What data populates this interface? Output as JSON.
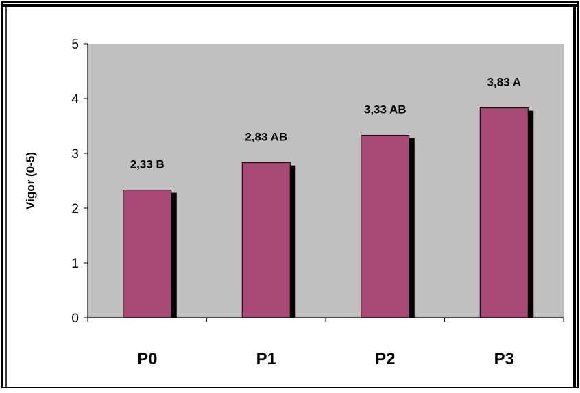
{
  "chart_data": {
    "type": "bar",
    "categories": [
      "P0",
      "P1",
      "P2",
      "P3"
    ],
    "values": [
      2.33,
      2.83,
      3.33,
      3.83
    ],
    "data_labels": [
      "2,33 B",
      "2,83 AB",
      "3,33 AB",
      "3,83 A"
    ],
    "ylabel": "Vigor (0-5)",
    "xlabel": "",
    "ylim": [
      0,
      5
    ],
    "yticks": [
      "0",
      "1",
      "2",
      "3",
      "4",
      "5"
    ],
    "grid": false,
    "legend": "none",
    "colors": {
      "bar": "#A94A76",
      "bar_shadow": "#000000",
      "plot_background": "#C0C0C0",
      "frame": "#000000"
    }
  }
}
